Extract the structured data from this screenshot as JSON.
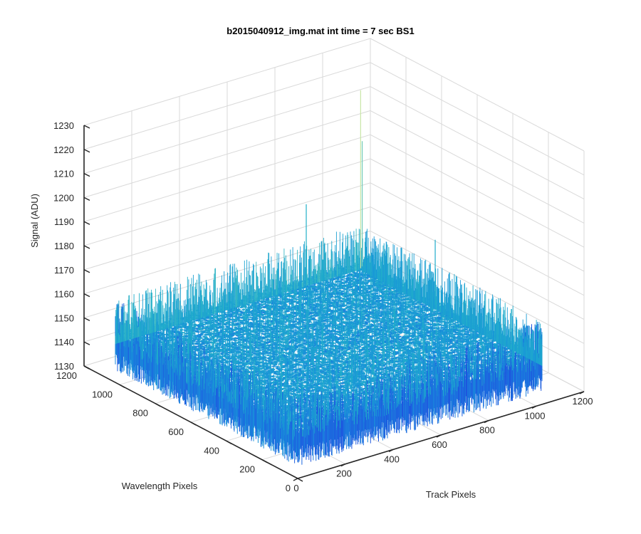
{
  "chart_data": {
    "type": "surface",
    "title": "b2015040912_img.mat int time = 7 sec   BS1",
    "xlabel": "Track Pixels",
    "ylabel": "Wavelength Pixels",
    "zlabel": "Signal (ADU)",
    "xlim": [
      0,
      1200
    ],
    "ylim": [
      0,
      1200
    ],
    "zlim": [
      1130,
      1230
    ],
    "xticks": [
      "0",
      "200",
      "400",
      "600",
      "800",
      "1000",
      "1200"
    ],
    "yticks": [
      "0",
      "200",
      "400",
      "600",
      "800",
      "1000",
      "1200"
    ],
    "zticks": [
      "1130",
      "1140",
      "1150",
      "1160",
      "1170",
      "1180",
      "1190",
      "1200",
      "1210",
      "1220",
      "1230"
    ],
    "grid": true,
    "surface": {
      "x_range": [
        0,
        1024
      ],
      "y_range": [
        0,
        1024
      ],
      "mean_signal": 1148,
      "noise_range": [
        1135,
        1165
      ],
      "spikes": [
        {
          "x": 1010,
          "y": 1000,
          "signal": 1222
        },
        {
          "x": 1024,
          "y": 1010,
          "signal": 1200
        },
        {
          "x": 800,
          "y": 1024,
          "signal": 1180
        },
        {
          "x": 1024,
          "y": 600,
          "signal": 1175
        }
      ],
      "colormap": [
        "#1f3bdc",
        "#1c6fe0",
        "#1896d8",
        "#22b0c8",
        "#e6f0a0"
      ]
    }
  }
}
